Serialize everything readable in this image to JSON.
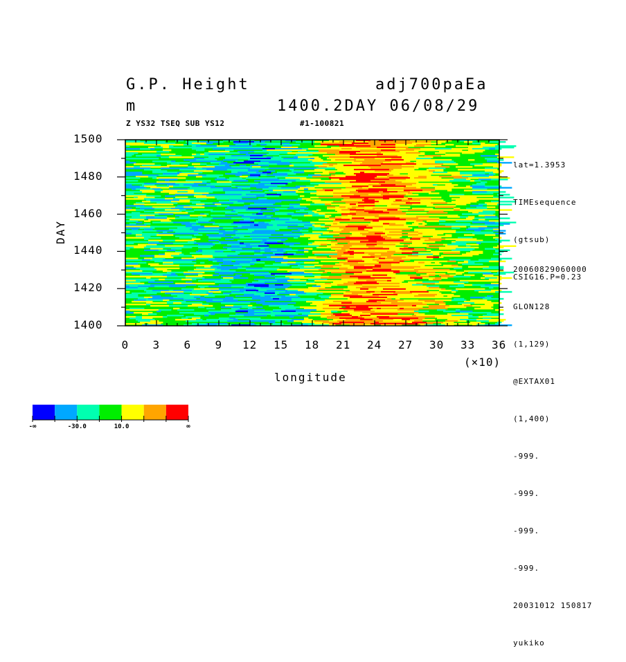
{
  "header": {
    "title_left": "G.P. Height",
    "title_right": "adj700paEa",
    "unit": "m",
    "time_label": "1400.2DAY 06/08/29",
    "sub_left": "Z YS32 TSEQ SUB YS12",
    "sub_right": "#1-100821"
  },
  "side_info": {
    "top": [
      "lat=1.3953",
      "TIMEsequence",
      "(gtsub)",
      "CSIG16.P=0.23"
    ],
    "bottom": [
      "20060829060000",
      "GLON128",
      "(1,129)",
      "@EXTAX01",
      "(1,400)",
      "-999.",
      "-999.",
      "-999.",
      "-999.",
      "20031012 150817",
      "yukiko"
    ]
  },
  "chart_data": {
    "type": "heatmap",
    "xlabel": "longitude",
    "ylabel": "DAY",
    "x_multiplier": "(×10)",
    "xlim": [
      0,
      36
    ],
    "ylim": [
      1400,
      1500
    ],
    "x_ticks": [
      "0",
      "3",
      "6",
      "9",
      "12",
      "15",
      "18",
      "21",
      "24",
      "27",
      "30",
      "33",
      "36"
    ],
    "y_ticks": [
      "1400",
      "1420",
      "1440",
      "1460",
      "1480",
      "1500"
    ],
    "colorbar": {
      "colors": [
        "#0000ff",
        "#00a8ff",
        "#00ffb0",
        "#00ee00",
        "#ffff00",
        "#ffa500",
        "#ff0000"
      ],
      "labels": [
        "-∞",
        "-30.0",
        "10.0",
        "∞"
      ]
    }
  }
}
